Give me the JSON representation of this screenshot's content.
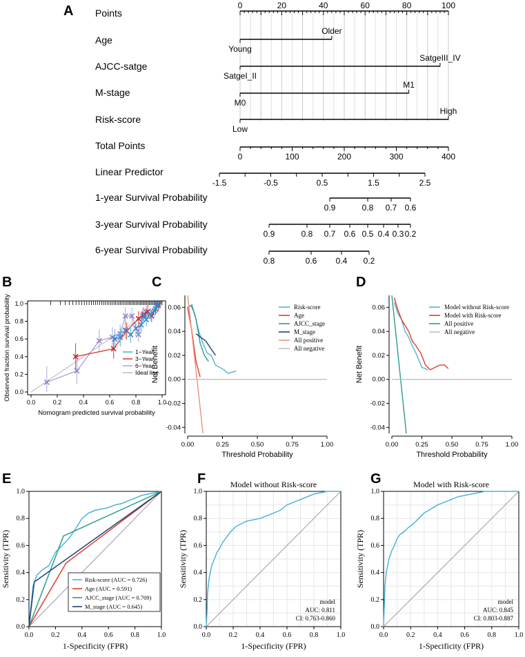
{
  "panel_labels": [
    "A",
    "B",
    "C",
    "D",
    "E",
    "F",
    "G"
  ],
  "chart_data": [
    {
      "panel": "A",
      "type": "nomogram",
      "rows": [
        {
          "label": "Points",
          "ticks": [
            0,
            20,
            40,
            60,
            80,
            100
          ]
        },
        {
          "label": "Age",
          "low": "Young",
          "high": "Older",
          "low_points": 0,
          "high_points": 44
        },
        {
          "label": "AJCC-satge",
          "low": "SatgeI_II",
          "high": "SatgeIII_IV",
          "low_points": 0,
          "high_points": 96
        },
        {
          "label": "M-stage",
          "low": "M0",
          "high": "M1",
          "low_points": 0,
          "high_points": 81
        },
        {
          "label": "Risk-score",
          "low": "Low",
          "high": "High",
          "low_points": 0,
          "high_points": 100
        },
        {
          "label": "Total Points",
          "ticks": [
            0,
            100,
            200,
            300,
            400
          ]
        },
        {
          "label": "Linear Predictor",
          "ticks": [
            "-1.5",
            "-0.5",
            "0.5",
            "1.5",
            "2.5"
          ]
        },
        {
          "label": "1-year Survival Probability",
          "ticks": [
            "0.9",
            "0.8",
            "0.7",
            "0.6"
          ]
        },
        {
          "label": "3-year Survival Probability",
          "ticks": [
            "0.9",
            "0.8",
            "0.7",
            "0.6",
            "0.5",
            "0.4",
            "0.3",
            "0.2"
          ]
        },
        {
          "label": "6-year Survival Probability",
          "ticks": [
            "0.8",
            "0.6",
            "0.4",
            "0.2"
          ]
        }
      ]
    },
    {
      "panel": "B",
      "type": "line",
      "title": "",
      "xlabel": "Nomogram predicted survival probability",
      "ylabel": "Observed fraction survival probability",
      "xlim": [
        0,
        1.0
      ],
      "ylim": [
        0,
        1.0
      ],
      "ticks": [
        "0.0",
        "0.2",
        "0.4",
        "0.6",
        "0.8",
        "1.0"
      ],
      "series": [
        {
          "name": "1−Year",
          "color": "#4db3d8",
          "x": [
            0.64,
            0.68,
            0.72,
            0.76,
            0.8,
            0.84,
            0.86,
            0.88,
            0.91,
            0.94,
            0.96,
            0.97
          ],
          "y": [
            0.6,
            0.62,
            0.7,
            0.65,
            0.72,
            0.76,
            0.86,
            0.82,
            0.88,
            0.92,
            0.97,
            1.0
          ]
        },
        {
          "name": "3−Year",
          "color": "#e23b2b",
          "x": [
            0.34,
            0.63,
            0.73,
            0.82,
            0.86,
            0.89,
            0.92,
            0.95,
            0.97
          ],
          "y": [
            0.4,
            0.49,
            0.69,
            0.83,
            0.88,
            0.91,
            0.86,
            0.94,
            0.98
          ]
        },
        {
          "name": "6−Year",
          "color": "#b0a6d8",
          "x": [
            0.12,
            0.35,
            0.52,
            0.62,
            0.68,
            0.72,
            0.77,
            0.82,
            0.85,
            0.88
          ],
          "y": [
            0.11,
            0.24,
            0.58,
            0.62,
            0.66,
            0.86,
            0.86,
            0.65,
            0.86,
            0.9
          ]
        },
        {
          "name": "Ideal line",
          "color": "#bfbfbf",
          "x": [
            0,
            1
          ],
          "y": [
            0,
            1
          ]
        }
      ]
    },
    {
      "panel": "C",
      "type": "line",
      "xlabel": "Threshold Probability",
      "ylabel": "Net Benefit",
      "xlim": [
        0,
        1.0
      ],
      "ylim": [
        -0.045,
        0.07
      ],
      "xticks": [
        "0.00",
        "0.25",
        "0.50",
        "0.75",
        "1.00"
      ],
      "yticks": [
        "0.06",
        "0.04",
        "0.02",
        "0.00",
        "-0.02",
        "-0.04"
      ],
      "series": [
        {
          "name": "Risk-score",
          "color": "#4db3d8",
          "x": [
            0.02,
            0.05,
            0.08,
            0.11,
            0.14,
            0.17,
            0.2,
            0.23,
            0.26,
            0.29,
            0.32,
            0.35
          ],
          "y": [
            0.062,
            0.055,
            0.04,
            0.03,
            0.022,
            0.02,
            0.012,
            0.01,
            0.008,
            0.005,
            0.006,
            0.007
          ]
        },
        {
          "name": "Age",
          "color": "#e23b2b",
          "x": [
            0.0,
            0.03,
            0.06,
            0.09
          ],
          "y": [
            0.06,
            0.04,
            0.015,
            0.002
          ]
        },
        {
          "name": "AJCC_stage",
          "color": "#2a9c8c",
          "x": [
            0.0,
            0.03,
            0.06,
            0.09,
            0.12,
            0.15
          ],
          "y": [
            0.06,
            0.062,
            0.05,
            0.03,
            0.02,
            0.015
          ]
        },
        {
          "name": "M_stage",
          "color": "#1f3d7a",
          "x": [
            0.06,
            0.13,
            0.2
          ],
          "y": [
            0.038,
            0.032,
            0.02
          ]
        },
        {
          "name": "All positive",
          "color": "#f08f78",
          "x": [
            0.0,
            0.11
          ],
          "y": [
            0.07,
            -0.045
          ]
        },
        {
          "name": "All negative",
          "color": "#bfbfbf",
          "x": [
            0.0,
            1.0
          ],
          "y": [
            0.0,
            0.0
          ]
        }
      ]
    },
    {
      "panel": "D",
      "type": "line",
      "xlabel": "Threshold Probability",
      "ylabel": "Net Benefit",
      "xlim": [
        0,
        1.0
      ],
      "ylim": [
        -0.045,
        0.07
      ],
      "xticks": [
        "0.00",
        "0.25",
        "0.50",
        "0.75",
        "1.00"
      ],
      "yticks": [
        "0.06",
        "0.04",
        "0.02",
        "0.00",
        "-0.02",
        "-0.04"
      ],
      "series": [
        {
          "name": "Model without Risk-score",
          "color": "#4db3d8",
          "x": [
            0.02,
            0.05,
            0.08,
            0.11,
            0.14,
            0.17,
            0.2,
            0.25,
            0.3
          ],
          "y": [
            0.064,
            0.055,
            0.05,
            0.04,
            0.035,
            0.028,
            0.022,
            0.01,
            0.008
          ]
        },
        {
          "name": "Model with Risk-score",
          "color": "#e23b2b",
          "x": [
            0.02,
            0.05,
            0.08,
            0.11,
            0.14,
            0.17,
            0.2,
            0.24,
            0.28,
            0.32,
            0.36,
            0.4,
            0.44,
            0.47
          ],
          "y": [
            0.068,
            0.058,
            0.05,
            0.045,
            0.04,
            0.032,
            0.028,
            0.022,
            0.012,
            0.008,
            0.01,
            0.012,
            0.012,
            0.009
          ]
        },
        {
          "name": "All positive",
          "color": "#2a9c8c",
          "x": [
            0.0,
            0.12
          ],
          "y": [
            0.07,
            -0.045
          ]
        },
        {
          "name": "All negative",
          "color": "#bfbfbf",
          "x": [
            0.0,
            1.0
          ],
          "y": [
            0.0,
            0.0
          ]
        }
      ]
    },
    {
      "panel": "E",
      "type": "line",
      "xlabel": "1-Specificity (FPR)",
      "ylabel": "Sensitivity (TPR)",
      "xlim": [
        0,
        1.0
      ],
      "ylim": [
        0,
        1.0
      ],
      "ticks": [
        "0.0",
        "0.2",
        "0.4",
        "0.6",
        "0.8",
        "1.0"
      ],
      "series": [
        {
          "name": "Risk-score (AUC = 0.726)",
          "color": "#4db3d8",
          "x": [
            0,
            0.03,
            0.06,
            0.1,
            0.15,
            0.2,
            0.25,
            0.3,
            0.35,
            0.4,
            0.45,
            0.5,
            0.55,
            0.6,
            0.65,
            0.7,
            0.75,
            0.8,
            0.85,
            0.9,
            0.95,
            1.0
          ],
          "y": [
            0,
            0.3,
            0.38,
            0.42,
            0.45,
            0.55,
            0.6,
            0.65,
            0.72,
            0.8,
            0.84,
            0.86,
            0.87,
            0.88,
            0.9,
            0.91,
            0.93,
            0.95,
            0.97,
            0.98,
            0.99,
            1.0
          ]
        },
        {
          "name": "Age (AUC = 0.591)",
          "color": "#e23b2b",
          "x": [
            0,
            0.28,
            1.0
          ],
          "y": [
            0,
            0.47,
            1.0
          ]
        },
        {
          "name": "AJCC_stage (AUC = 0.709)",
          "color": "#2a9c8c",
          "x": [
            0,
            0.26,
            1.0
          ],
          "y": [
            0,
            0.67,
            1.0
          ]
        },
        {
          "name": "M_stage (AUC = 0.645)",
          "color": "#1f3d7a",
          "x": [
            0,
            0.04,
            1.0
          ],
          "y": [
            0,
            0.33,
            1.0
          ]
        }
      ]
    },
    {
      "panel": "F",
      "type": "line",
      "title": "Model without Risk-score",
      "xlabel": "1-Specificity (FPR)",
      "ylabel": "Sensitivity (TPR)",
      "xlim": [
        0,
        1.0
      ],
      "ylim": [
        0,
        1.0
      ],
      "ticks": [
        "0.0",
        "0.2",
        "0.4",
        "0.6",
        "0.8",
        "1.0"
      ],
      "annotation": [
        "model",
        "AUC: 0.811",
        "CI: 0.763-0.860"
      ],
      "series": [
        {
          "name": "model",
          "color": "#4db3d8",
          "x": [
            0,
            0.005,
            0.01,
            0.02,
            0.04,
            0.06,
            0.08,
            0.1,
            0.12,
            0.15,
            0.18,
            0.22,
            0.26,
            0.3,
            0.35,
            0.4,
            0.45,
            0.5,
            0.55,
            0.6,
            0.65,
            0.7,
            0.75,
            0.8,
            0.85,
            0.9,
            1.0
          ],
          "y": [
            0,
            0.1,
            0.25,
            0.35,
            0.45,
            0.5,
            0.55,
            0.58,
            0.62,
            0.66,
            0.7,
            0.74,
            0.76,
            0.78,
            0.79,
            0.8,
            0.82,
            0.84,
            0.86,
            0.9,
            0.92,
            0.94,
            0.96,
            0.98,
            0.99,
            1.0,
            1.0
          ]
        },
        {
          "name": "reference",
          "color": "#b3b3b3",
          "x": [
            0,
            1
          ],
          "y": [
            0,
            1
          ]
        }
      ]
    },
    {
      "panel": "G",
      "type": "line",
      "title": "Model with Risk-score",
      "xlabel": "1-Specificity (FPR)",
      "ylabel": "Sensitivity (TPR)",
      "xlim": [
        0,
        1.0
      ],
      "ylim": [
        0,
        1.0
      ],
      "ticks": [
        "0.0",
        "0.2",
        "0.4",
        "0.6",
        "0.8",
        "1.0"
      ],
      "annotation": [
        "model",
        "AUC: 0.845",
        "CI: 0.803-0.887"
      ],
      "series": [
        {
          "name": "model",
          "color": "#4db3d8",
          "x": [
            0,
            0.005,
            0.01,
            0.02,
            0.04,
            0.06,
            0.08,
            0.1,
            0.12,
            0.15,
            0.18,
            0.22,
            0.26,
            0.3,
            0.35,
            0.4,
            0.45,
            0.5,
            0.55,
            0.6,
            0.65,
            0.7,
            0.75,
            0.8,
            0.85,
            1.0
          ],
          "y": [
            0,
            0.15,
            0.3,
            0.4,
            0.5,
            0.56,
            0.6,
            0.65,
            0.68,
            0.7,
            0.73,
            0.76,
            0.8,
            0.84,
            0.87,
            0.9,
            0.92,
            0.94,
            0.96,
            0.97,
            0.98,
            0.99,
            1.0,
            1.0,
            1.0,
            1.0
          ]
        },
        {
          "name": "reference",
          "color": "#b3b3b3",
          "x": [
            0,
            1
          ],
          "y": [
            0,
            1
          ]
        }
      ]
    }
  ]
}
